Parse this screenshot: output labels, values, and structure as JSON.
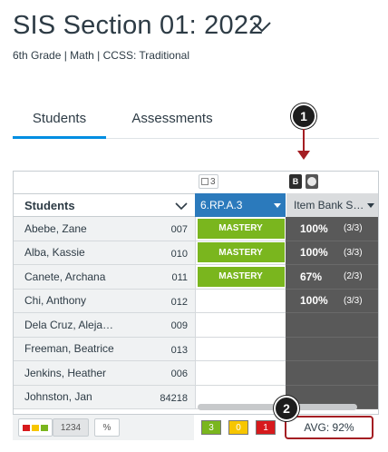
{
  "header": {
    "title": "SIS Section 01: 2022",
    "subtitle": "6th Grade | Math | CCSS: Traditional"
  },
  "tabs": [
    {
      "label": "Students",
      "active": true
    },
    {
      "label": "Assessments",
      "active": false
    }
  ],
  "callouts": {
    "one": "1",
    "two": "2"
  },
  "grid": {
    "column_toggle_count": "3",
    "badge_letter": "B",
    "students_header": "Students",
    "columns": [
      {
        "label": "6.RP.A.3",
        "color": "#2b7abc"
      },
      {
        "label": "Item Bank S…",
        "color": "#dadcde"
      }
    ],
    "rows": [
      {
        "name": "Abebe, Zane",
        "id": "007",
        "outcome": "MASTERY",
        "pct": "100%",
        "frac": "(3/3)"
      },
      {
        "name": "Alba, Kassie",
        "id": "010",
        "outcome": "MASTERY",
        "pct": "100%",
        "frac": "(3/3)"
      },
      {
        "name": "Canete, Archana",
        "id": "011",
        "outcome": "MASTERY",
        "pct": "67%",
        "frac": "(2/3)"
      },
      {
        "name": "Chi, Anthony",
        "id": "012",
        "outcome": "",
        "pct": "100%",
        "frac": "(3/3)"
      },
      {
        "name": "Dela Cruz, Aleja…",
        "id": "009",
        "outcome": "",
        "pct": "",
        "frac": ""
      },
      {
        "name": "Freeman, Beatrice",
        "id": "013",
        "outcome": "",
        "pct": "",
        "frac": ""
      },
      {
        "name": "Jenkins, Heather",
        "id": "006",
        "outcome": "",
        "pct": "",
        "frac": ""
      },
      {
        "name": "Johnston, Jan",
        "id": "84218",
        "outcome": "",
        "pct": "",
        "frac": ""
      }
    ]
  },
  "footer": {
    "num_button": "1234",
    "pct_button": "%",
    "counts": {
      "green": "3",
      "yellow": "0",
      "red": "1"
    },
    "avg": "AVG: 92%"
  },
  "colors": {
    "mastery": "#7ab61e",
    "outcome_header": "#2b7abc",
    "dark_column": "#595959",
    "callout_arrow": "#a41e23",
    "tab_active": "#008ee2"
  }
}
